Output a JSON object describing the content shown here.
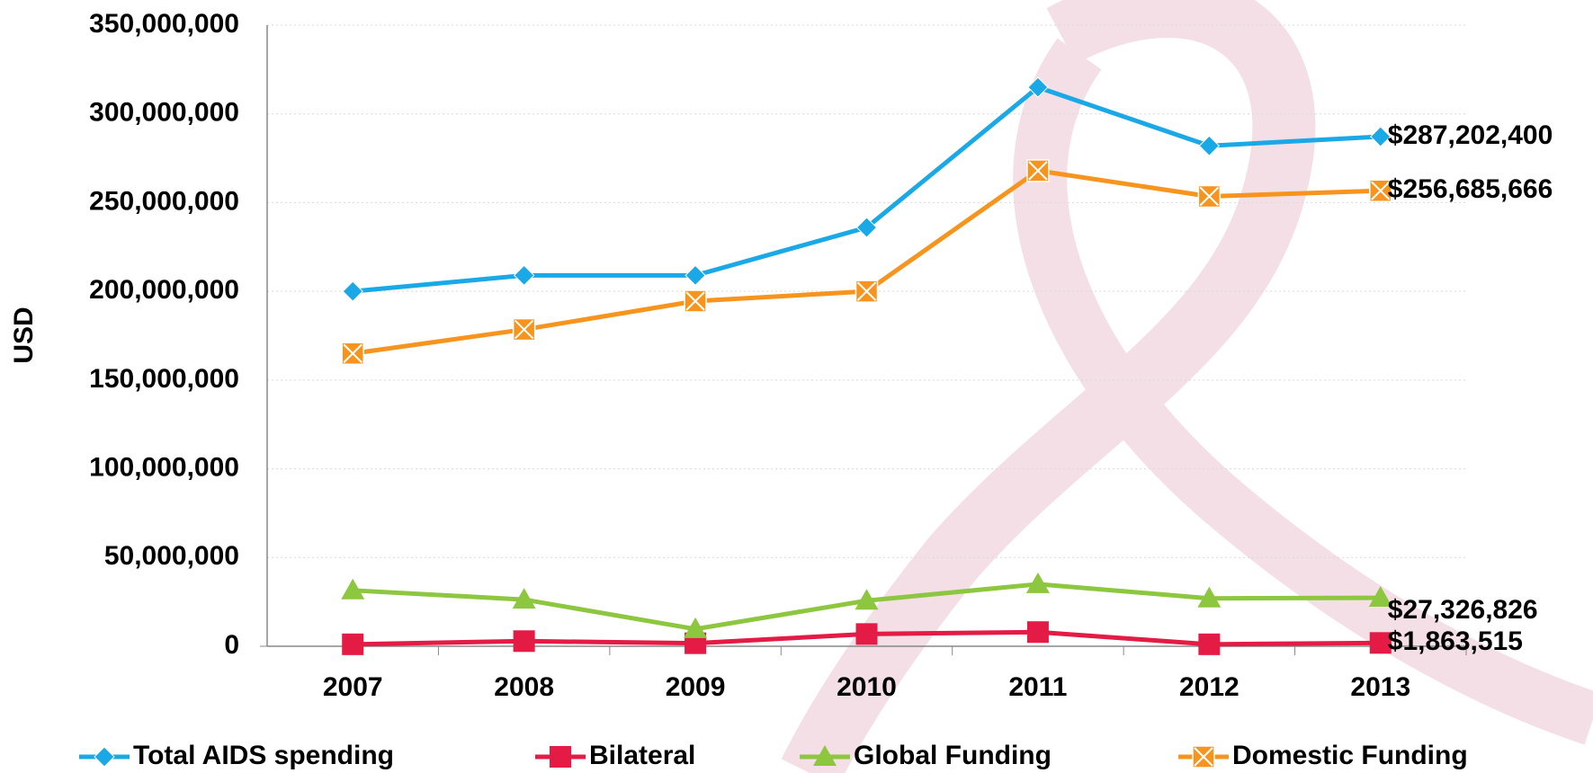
{
  "chart_data": {
    "type": "line",
    "y_label": "USD",
    "categories": [
      "2007",
      "2008",
      "2009",
      "2010",
      "2011",
      "2012",
      "2013"
    ],
    "ylim": [
      0,
      350000000
    ],
    "yticks": [
      0,
      {
        "value": 50000000,
        "label": "50,000,000"
      },
      {
        "value": 100000000,
        "label": "100,000,000"
      },
      {
        "value": 150000000,
        "label": "150,000,000"
      },
      {
        "value": 200000000,
        "label": "200,000,000"
      },
      {
        "value": 250000000,
        "label": "250,000,000"
      },
      {
        "value": 300000000,
        "label": "300,000,000"
      },
      {
        "value": 350000000,
        "label": "350,000,000"
      }
    ],
    "grid": true,
    "legend": "bottom",
    "series": [
      {
        "name": "Total AIDS spending",
        "color": "#1aa9e6",
        "marker": "diamond",
        "values": [
          200000000,
          209000000,
          209000000,
          236000000,
          315000000,
          282000000,
          287202400
        ],
        "value_labels": [
          null,
          null,
          null,
          null,
          null,
          null,
          "$287,202,400"
        ]
      },
      {
        "name": "Bilateral",
        "color": "#e31b45",
        "marker": "square",
        "values": [
          1100000,
          2900000,
          1700000,
          6900000,
          8000000,
          1100000,
          1863515
        ],
        "value_labels": [
          null,
          null,
          null,
          null,
          null,
          null,
          "$1,863,515"
        ]
      },
      {
        "name": "Global Funding",
        "color": "#8dc63f",
        "marker": "triangle",
        "values": [
          31500000,
          26300000,
          9700000,
          25700000,
          35000000,
          27000000,
          27326826
        ],
        "value_labels": [
          null,
          null,
          null,
          null,
          null,
          null,
          "$27,326,826"
        ]
      },
      {
        "name": "Domestic Funding",
        "color": "#f7941d",
        "marker": "xsquare",
        "values": [
          165000000,
          178500000,
          194500000,
          200000000,
          268000000,
          253500000,
          256685666
        ],
        "value_labels": [
          null,
          null,
          null,
          null,
          null,
          null,
          "$256,685,666"
        ]
      }
    ]
  }
}
